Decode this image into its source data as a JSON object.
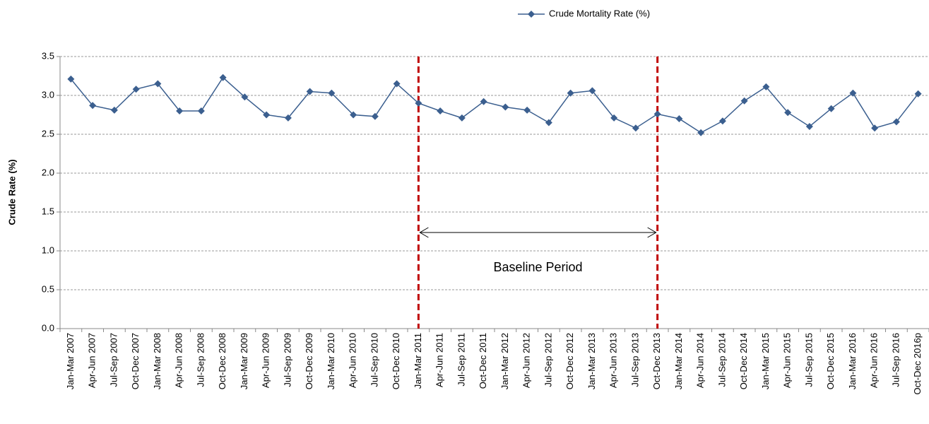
{
  "chart_data": {
    "type": "line",
    "legend_position": "top",
    "y_label": "Crude Rate (%)",
    "categories": [
      "Jan-Mar 2007",
      "Apr-Jun 2007",
      "Jul-Sep 2007",
      "Oct-Dec 2007",
      "Jan-Mar 2008",
      "Apr-Jun 2008",
      "Jul-Sep 2008",
      "Oct-Dec 2008",
      "Jan-Mar 2009",
      "Apr-Jun 2009",
      "Jul-Sep 2009",
      "Oct-Dec 2009",
      "Jan-Mar 2010",
      "Apr-Jun 2010",
      "Jul-Sep 2010",
      "Oct-Dec 2010",
      "Jan-Mar 2011",
      "Apr-Jun 2011",
      "Jul-Sep 2011",
      "Oct-Dec 2011",
      "Jan-Mar 2012",
      "Apr-Jun 2012",
      "Jul-Sep 2012",
      "Oct-Dec 2012",
      "Jan-Mar 2013",
      "Apr-Jun 2013",
      "Jul-Sep 2013",
      "Oct-Dec 2013",
      "Jan-Mar 2014",
      "Apr-Jun 2014",
      "Jul-Sep 2014",
      "Oct-Dec 2014",
      "Jan-Mar 2015",
      "Apr-Jun 2015",
      "Jul-Sep 2015",
      "Oct-Dec 2015",
      "Jan-Mar 2016",
      "Apr-Jun 2016",
      "Jul-Sep 2016",
      "Oct-Dec 2016p"
    ],
    "series": [
      {
        "name": "Crude Mortality Rate (%)",
        "color": "#3b5f8f",
        "values": [
          3.21,
          2.87,
          2.81,
          3.08,
          3.15,
          2.8,
          2.8,
          3.23,
          2.98,
          2.75,
          2.71,
          3.05,
          3.03,
          2.75,
          2.73,
          3.15,
          2.9,
          2.8,
          2.71,
          2.92,
          2.85,
          2.81,
          2.65,
          3.03,
          3.06,
          2.71,
          2.58,
          2.76,
          2.7,
          2.52,
          2.67,
          2.93,
          3.11,
          2.78,
          2.6,
          2.83,
          3.03,
          2.58,
          2.66,
          3.02
        ]
      }
    ],
    "ylim": [
      0,
      3.5
    ],
    "yticks": [
      {
        "value": 0,
        "label": "0.0"
      },
      0.5,
      {
        "value": 1,
        "label": "1.0"
      },
      1.5,
      {
        "value": 2,
        "label": "2.0"
      },
      2.5,
      {
        "value": 3,
        "label": "3.0"
      },
      3.5
    ],
    "grid": true,
    "baseline": {
      "label": "Baseline Period",
      "start": "Jan-Mar 2011",
      "end": "Oct-Dec 2013",
      "color": "#c00000"
    }
  }
}
